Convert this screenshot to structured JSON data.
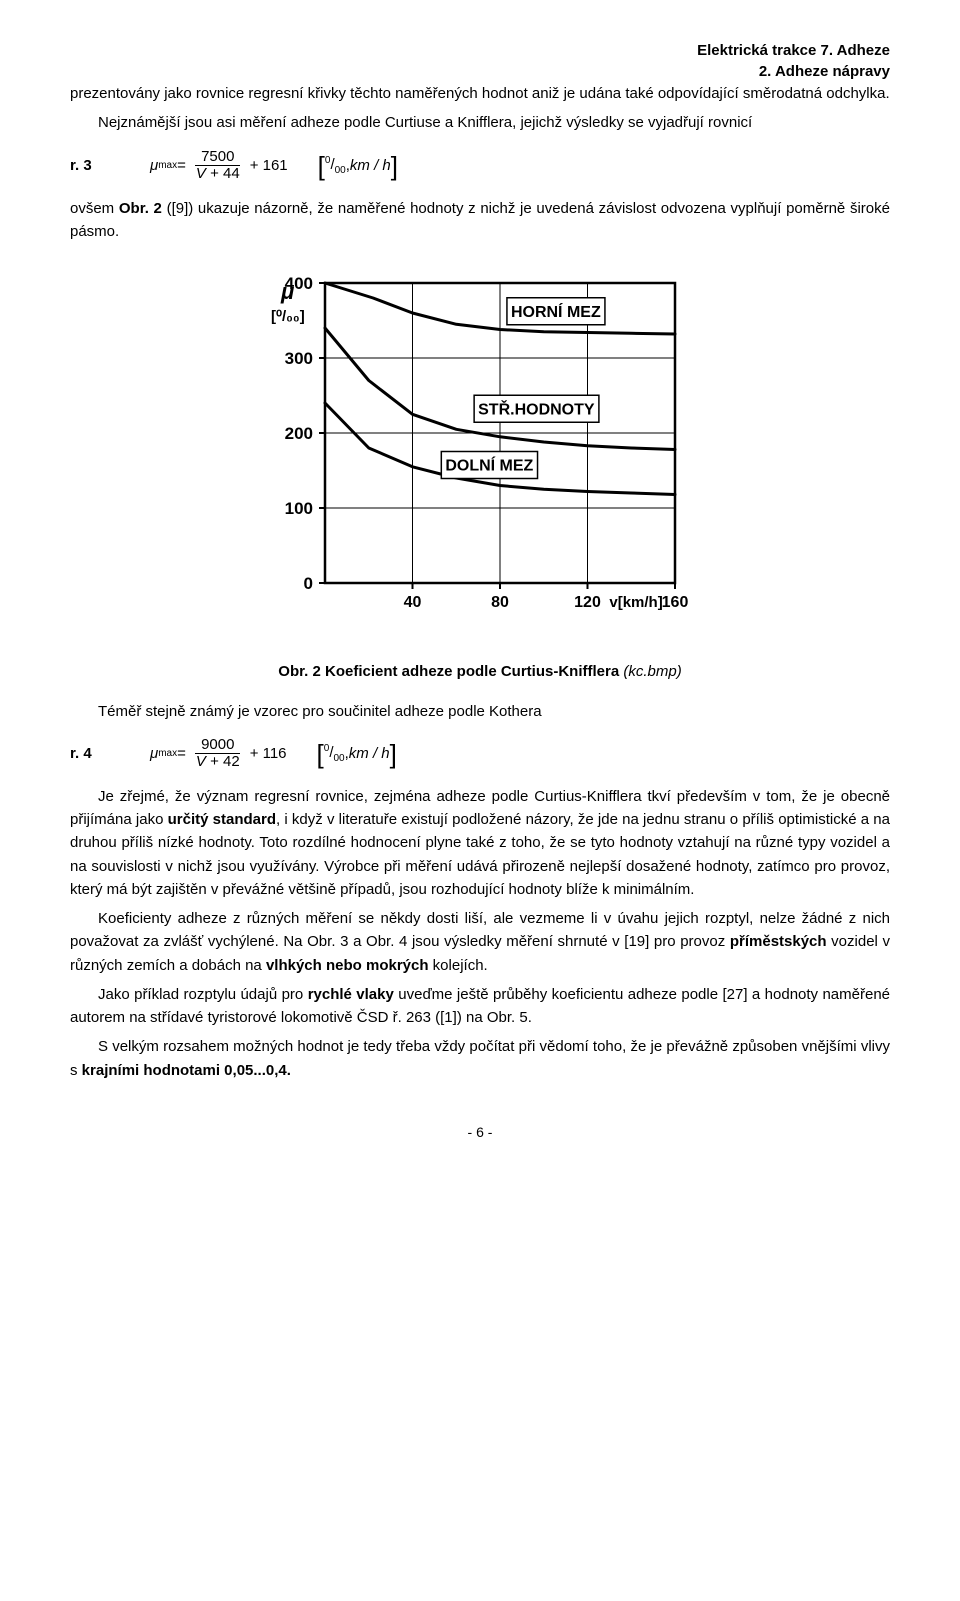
{
  "header": {
    "line1": "Elektrická trakce 7. Adheze",
    "line2": "2. Adheze nápravy"
  },
  "para1_a": "prezentovány jako rovnice regresní křivky těchto naměřených hodnot aniž je udána také odpovídající směrodatná odchylka.",
  "para2_a": "Nejznámější jsou asi měření adheze podle Curtiuse a Knifflera, jejichž výsledky se vyjadřují rovnicí",
  "eq_r_label": "r.",
  "eq3": {
    "num": "3",
    "mu_label": "μ",
    "mu_sub": "max",
    "equals": " = ",
    "frac_num": "7500",
    "frac_den_V": "V",
    "frac_den_plus": " + 44",
    "plus_const": " + 161",
    "unit_sup": "0",
    "unit_sub": "00",
    "unit_slash": "/",
    "unit_comma": ",  ",
    "unit_kmh": "km / h"
  },
  "para3_a": "ovšem ",
  "para3_b": "Obr.  2",
  "para3_c": " ([9]) ukazuje názorně, že naměřené hodnoty z nichž je uvedená závislost odvozena vyplňují poměrně široké pásmo.",
  "figure": {
    "y_axis_symbol": "μ",
    "y_axis_unit": "[⁰/₀₀]",
    "y_ticks": [
      "0",
      "100",
      "200",
      "300",
      "400"
    ],
    "x_ticks": [
      "40",
      "80",
      "120",
      "160"
    ],
    "x_axis_label": "v[km/h]",
    "label_top": "HORNÍ MEZ",
    "label_mid": "STŘ.HODNOTY",
    "label_bot": "DOLNÍ MEZ",
    "colors": {
      "bg": "#ffffff",
      "frame": "#000000",
      "grid": "#000000",
      "curve": "#000000",
      "text": "#000000"
    },
    "axes": {
      "xlim": [
        0,
        160
      ],
      "ylim": [
        0,
        400
      ],
      "xtick_step": 40,
      "ytick_step": 100
    },
    "curves": {
      "upper": [
        [
          0,
          400
        ],
        [
          22,
          380
        ],
        [
          40,
          360
        ],
        [
          60,
          345
        ],
        [
          80,
          338
        ],
        [
          100,
          335
        ],
        [
          120,
          334
        ],
        [
          140,
          333
        ],
        [
          160,
          332
        ]
      ],
      "middle": [
        [
          0,
          340
        ],
        [
          20,
          270
        ],
        [
          40,
          225
        ],
        [
          60,
          205
        ],
        [
          80,
          195
        ],
        [
          100,
          188
        ],
        [
          120,
          183
        ],
        [
          140,
          180
        ],
        [
          160,
          178
        ]
      ],
      "lower": [
        [
          0,
          240
        ],
        [
          20,
          180
        ],
        [
          40,
          155
        ],
        [
          60,
          140
        ],
        [
          80,
          130
        ],
        [
          100,
          125
        ],
        [
          120,
          122
        ],
        [
          140,
          120
        ],
        [
          160,
          118
        ]
      ]
    },
    "caption_bold": "Obr.  2 Koeficient adheze podle Curtius-Knifflera ",
    "caption_ital": "(kc.bmp)"
  },
  "para4": "Téměř stejně známý je vzorec pro součinitel adheze podle Kothera",
  "eq4": {
    "num": "4",
    "frac_num": "9000",
    "frac_den_V": "V",
    "frac_den_plus": " + 42",
    "plus_const": " + 116"
  },
  "para5_a": "Je zřejmé, že význam regresní rovnice, zejména adheze podle Curtius-Knifflera tkví především v tom, že je obecně přijímána jako ",
  "para5_b": "určitý standard",
  "para5_c": ", i když v literatuře existují podložené názory, že jde na jednu stranu o příliš optimistické a na druhou příliš nízké hodnoty. Toto rozdílné hodnocení plyne také z toho, že se tyto hodnoty vztahují na různé typy vozidel a na souvislosti v nichž jsou využívány. Výrobce při měření udává přirozeně nejlepší dosažené hodnoty, zatímco pro provoz, který má být zajištěn v převážné většině případů, jsou rozhodující hodnoty blíže k minimálním.",
  "para6_a": "Koeficienty adheze z různých měření se někdy dosti liší, ale vezmeme li v úvahu jejich rozptyl, nelze žádné z nich považovat za zvlášť vychýlené. Na Obr.  3 a Obr.  4 jsou výsledky měření shrnuté v [19] pro provoz ",
  "para6_b": "příměstských",
  "para6_c": " vozidel v různých zemích a dobách na ",
  "para6_d": "vlhkých nebo mokrých",
  "para6_e": " kolejích.",
  "para7_a": "Jako příklad rozptylu údajů pro ",
  "para7_b": "rychlé vlaky",
  "para7_c": " uveďme ještě průběhy koeficientu adheze podle [27] a hodnoty naměřené autorem na střídavé tyristorové lokomotivě ČSD ř. 263 ([1]) na Obr.  5.",
  "para8_a": "S velkým rozsahem možných hodnot je tedy třeba vždy počítat při vědomí toho, že je převážně způsoben vnějšími vlivy s ",
  "para8_b": "krajními hodnotami 0,05...0,4.",
  "pageno": "- 6 -"
}
